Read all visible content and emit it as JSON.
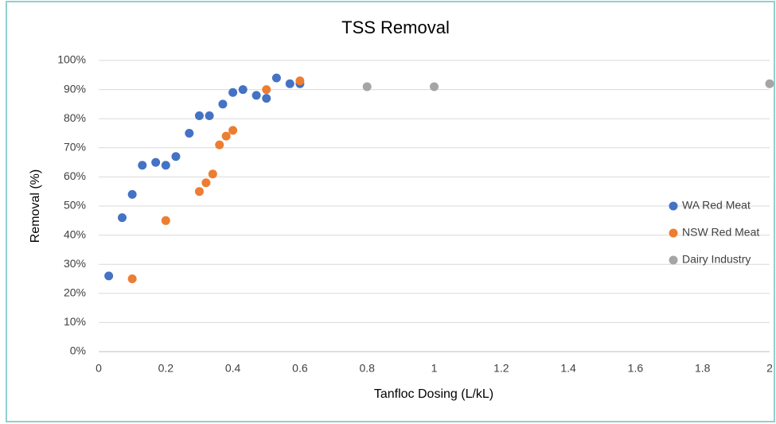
{
  "chart_data": {
    "type": "scatter",
    "title": "TSS Removal",
    "x_label": "Tanfloc Dosing (L/kL)",
    "y_label": "Removal (%)",
    "xlim": [
      0,
      2
    ],
    "xticks": [
      0,
      0.2,
      0.4,
      0.6,
      0.8,
      1,
      1.2,
      1.4,
      1.6,
      1.8,
      2
    ],
    "ylim": [
      0,
      100
    ],
    "yticks": [
      {
        "value": 0,
        "label": "0%"
      },
      {
        "value": 10,
        "label": "10%"
      },
      {
        "value": 20,
        "label": "20%"
      },
      {
        "value": 30,
        "label": "30%"
      },
      {
        "value": 40,
        "label": "40%"
      },
      {
        "value": 50,
        "label": "50%"
      },
      {
        "value": 60,
        "label": "60%"
      },
      {
        "value": 70,
        "label": "70%"
      },
      {
        "value": 80,
        "label": "80%"
      },
      {
        "value": 90,
        "label": "90%"
      },
      {
        "value": 100,
        "label": "100%"
      }
    ],
    "grid": true,
    "legend": "right",
    "series": [
      {
        "name": "WA Red Meat",
        "color": "#4472c4",
        "x": [
          0.03,
          0.07,
          0.1,
          0.13,
          0.17,
          0.2,
          0.23,
          0.27,
          0.3,
          0.33,
          0.37,
          0.4,
          0.43,
          0.47,
          0.5,
          0.53,
          0.57,
          0.6
        ],
        "y": [
          26,
          46,
          54,
          64,
          65,
          64,
          67,
          75,
          81,
          81,
          85,
          89,
          90,
          88,
          87,
          94,
          92,
          92
        ]
      },
      {
        "name": "NSW Red Meat",
        "color": "#ed7d31",
        "x": [
          0.1,
          0.2,
          0.3,
          0.32,
          0.34,
          0.36,
          0.38,
          0.4,
          0.5,
          0.6
        ],
        "y": [
          25,
          45,
          55,
          58,
          61,
          71,
          74,
          76,
          90,
          93
        ]
      },
      {
        "name": "Dairy Industry",
        "color": "#a5a5a5",
        "x": [
          0.8,
          1,
          2
        ],
        "y": [
          91,
          91,
          92
        ]
      }
    ]
  }
}
